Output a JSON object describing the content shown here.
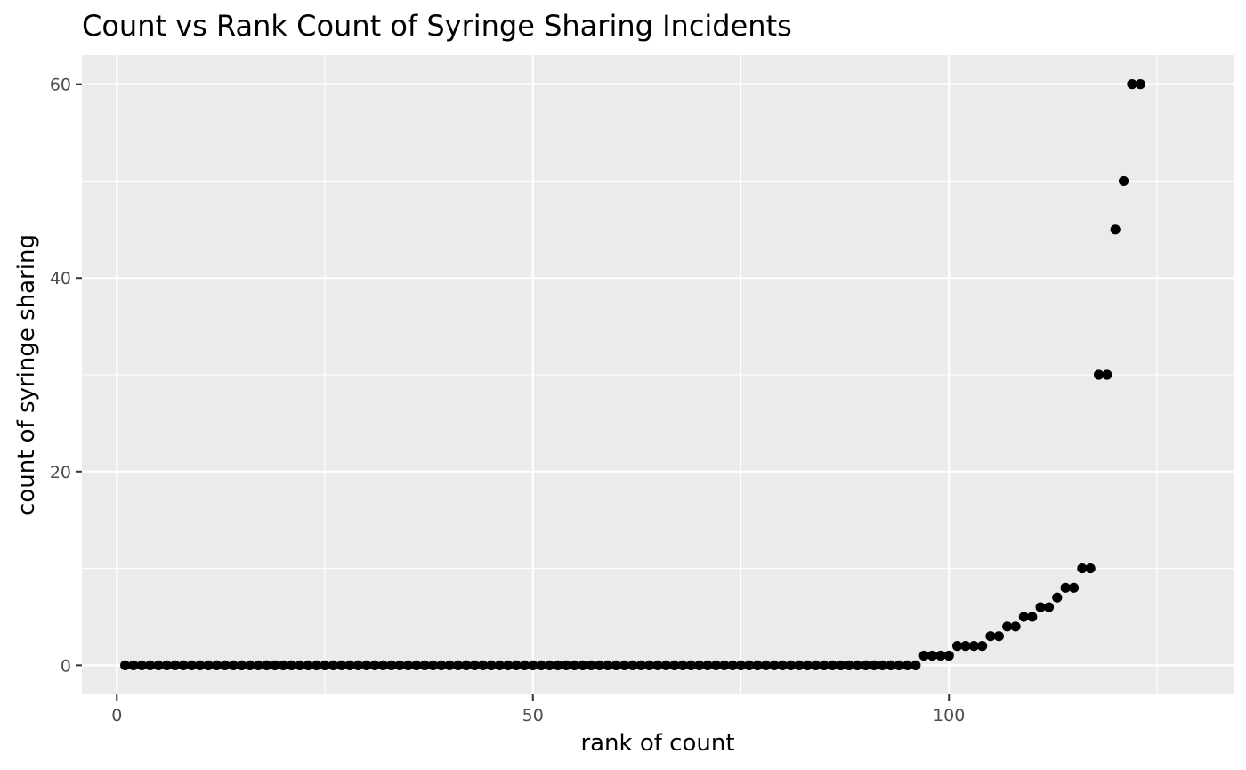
{
  "chart_data": {
    "type": "scatter",
    "title": "Count vs Rank Count of Syringe Sharing Incidents",
    "xlabel": "rank of count",
    "ylabel": "count of syringe sharing",
    "xlim": [
      -4.2,
      134.2
    ],
    "ylim": [
      -3,
      63
    ],
    "x_ticks": [
      0,
      50,
      100
    ],
    "x_tick_labels": [
      "0",
      "50",
      "100"
    ],
    "y_ticks": [
      0,
      20,
      40,
      60
    ],
    "y_tick_labels": [
      "0",
      "20",
      "40",
      "60"
    ],
    "x_minor_ticks": [
      25,
      75,
      125
    ],
    "y_minor_ticks": [
      10,
      30,
      50
    ],
    "grid": true,
    "background": "#ebebeb",
    "point_color": "#000000",
    "x": [
      1,
      2,
      3,
      4,
      5,
      6,
      7,
      8,
      9,
      10,
      11,
      12,
      13,
      14,
      15,
      16,
      17,
      18,
      19,
      20,
      21,
      22,
      23,
      24,
      25,
      26,
      27,
      28,
      29,
      30,
      31,
      32,
      33,
      34,
      35,
      36,
      37,
      38,
      39,
      40,
      41,
      42,
      43,
      44,
      45,
      46,
      47,
      48,
      49,
      50,
      51,
      52,
      53,
      54,
      55,
      56,
      57,
      58,
      59,
      60,
      61,
      62,
      63,
      64,
      65,
      66,
      67,
      68,
      69,
      70,
      71,
      72,
      73,
      74,
      75,
      76,
      77,
      78,
      79,
      80,
      81,
      82,
      83,
      84,
      85,
      86,
      87,
      88,
      89,
      90,
      91,
      92,
      93,
      94,
      95,
      96,
      97,
      98,
      99,
      100,
      101,
      102,
      103,
      104,
      105,
      106,
      107,
      108,
      109,
      110,
      111,
      112,
      113,
      114,
      115,
      116,
      117,
      118,
      119,
      120,
      121,
      122,
      123
    ],
    "y": [
      0,
      0,
      0,
      0,
      0,
      0,
      0,
      0,
      0,
      0,
      0,
      0,
      0,
      0,
      0,
      0,
      0,
      0,
      0,
      0,
      0,
      0,
      0,
      0,
      0,
      0,
      0,
      0,
      0,
      0,
      0,
      0,
      0,
      0,
      0,
      0,
      0,
      0,
      0,
      0,
      0,
      0,
      0,
      0,
      0,
      0,
      0,
      0,
      0,
      0,
      0,
      0,
      0,
      0,
      0,
      0,
      0,
      0,
      0,
      0,
      0,
      0,
      0,
      0,
      0,
      0,
      0,
      0,
      0,
      0,
      0,
      0,
      0,
      0,
      0,
      0,
      0,
      0,
      0,
      0,
      0,
      0,
      0,
      0,
      0,
      0,
      0,
      0,
      0,
      0,
      0,
      0,
      0,
      0,
      0,
      0,
      1,
      1,
      1,
      1,
      2,
      2,
      2,
      2,
      3,
      3,
      4,
      4,
      5,
      5,
      6,
      6,
      7,
      8,
      8,
      10,
      10,
      30,
      30,
      45,
      50,
      60,
      60
    ]
  }
}
